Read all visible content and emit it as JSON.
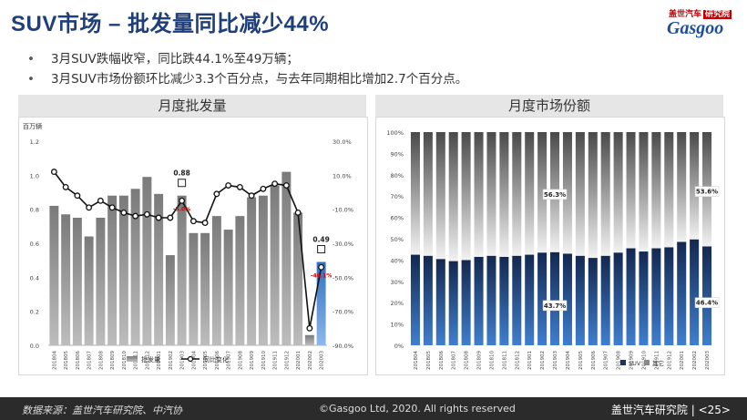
{
  "header": {
    "title": "SUV市场 – 批发量同比减少44%",
    "logo_top": "盖世汽车",
    "logo_badge": "研究院",
    "logo_main": "Gasgoo"
  },
  "bullets": [
    "3月SUV跌幅收窄，同比跌44.1%至49万辆；",
    "3月SUV市场份额环比减少3.3个百分点，与去年同期相比增加2.7个百分点。"
  ],
  "left_chart": {
    "title": "月度批发量",
    "unit_label": "百万辆",
    "legend_bar": "批发量",
    "legend_line": "同比变化"
  },
  "right_chart": {
    "title": "月度市场份额",
    "legend_suv": "SUV",
    "legend_other": "其它"
  },
  "colors": {
    "title": "#1f3f7a",
    "bar_gray": "#8a8a8a",
    "bar_highlight": "#3a78c8",
    "suv_navy": "#1b3463",
    "red_label": "#d00000"
  },
  "chart_data": [
    {
      "type": "bar",
      "categories": [
        "201804",
        "201805",
        "201806",
        "201807",
        "201808",
        "201809",
        "201810",
        "201811",
        "201812",
        "201901",
        "201902",
        "201903",
        "201904",
        "201905",
        "201906",
        "201907",
        "201908",
        "201909",
        "201910",
        "201911",
        "201912",
        "202001",
        "202002",
        "202003"
      ],
      "series": [
        {
          "name": "批发量",
          "axis": "left",
          "values": [
            0.82,
            0.77,
            0.75,
            0.64,
            0.75,
            0.88,
            0.88,
            0.92,
            0.99,
            0.89,
            0.53,
            0.88,
            0.66,
            0.66,
            0.76,
            0.68,
            0.76,
            0.87,
            0.88,
            0.94,
            1.02,
            0.78,
            0.06,
            0.49
          ]
        },
        {
          "name": "同比变化",
          "axis": "right",
          "type": "line",
          "values": [
            12.0,
            3.0,
            -2.0,
            -9.0,
            -5.0,
            -9.0,
            -12.0,
            -14.0,
            -13.0,
            -15.0,
            -15.0,
            -5.0,
            -17.0,
            -18.0,
            -1.0,
            4.0,
            3.0,
            -2.0,
            2.0,
            5.0,
            4.0,
            -12.0,
            -80.0,
            -44.1
          ]
        }
      ],
      "ylim_left": [
        0.0,
        1.2
      ],
      "yticks_left": [
        "0.0",
        "0.2",
        "0.4",
        "0.6",
        "0.8",
        "1.0",
        "1.2"
      ],
      "ylim_right": [
        -90.0,
        30.0
      ],
      "yticks_right": [
        "-90.0%",
        "-70.0%",
        "-50.0%",
        "-30.0%",
        "-10.0%",
        "10.0%",
        "30.0%"
      ],
      "annotations": [
        {
          "index": 11,
          "value_label": "0.88",
          "change_label": "-5.0%"
        },
        {
          "index": 23,
          "value_label": "0.49",
          "change_label": "-44.1%"
        }
      ],
      "highlight_index": 23,
      "grid": false,
      "legend": "bottom"
    },
    {
      "type": "bar",
      "stacked": true,
      "categories": [
        "201804",
        "201805",
        "201806",
        "201807",
        "201808",
        "201809",
        "201810",
        "201811",
        "201812",
        "201901",
        "201902",
        "201903",
        "201904",
        "201905",
        "201906",
        "201907",
        "201908",
        "201909",
        "201910",
        "201911",
        "201912",
        "202001",
        "202002",
        "202003"
      ],
      "series": [
        {
          "name": "SUV",
          "values": [
            42.5,
            42.0,
            40.5,
            39.5,
            40.0,
            41.5,
            42.0,
            41.5,
            42.0,
            42.5,
            43.5,
            43.7,
            43.0,
            42.0,
            41.0,
            42.0,
            43.5,
            45.5,
            44.0,
            45.5,
            46.0,
            48.5,
            49.7,
            46.4
          ]
        },
        {
          "name": "其它",
          "values": [
            57.5,
            58.0,
            59.5,
            60.5,
            60.0,
            58.5,
            58.0,
            58.5,
            58.0,
            57.5,
            56.5,
            56.3,
            57.0,
            58.0,
            59.0,
            58.0,
            56.5,
            54.5,
            56.0,
            54.5,
            54.0,
            51.5,
            50.3,
            53.6
          ]
        }
      ],
      "ylim": [
        0,
        100
      ],
      "yticks": [
        "0%",
        "10%",
        "20%",
        "30%",
        "40%",
        "50%",
        "60%",
        "70%",
        "80%",
        "90%",
        "100%"
      ],
      "annotations": [
        {
          "index": 11,
          "suv_label": "43.7%",
          "other_label": "56.3%"
        },
        {
          "index": 23,
          "suv_label": "46.4%",
          "other_label": "53.6%"
        }
      ],
      "grid": false,
      "legend": "bottom"
    }
  ],
  "footer": {
    "source": "数据来源：盖世汽车研究院、中汽协",
    "copyright": "©Gasgoo Ltd, 2020. All rights reserved",
    "org": "盖世汽车研究院",
    "page": "<25>"
  }
}
